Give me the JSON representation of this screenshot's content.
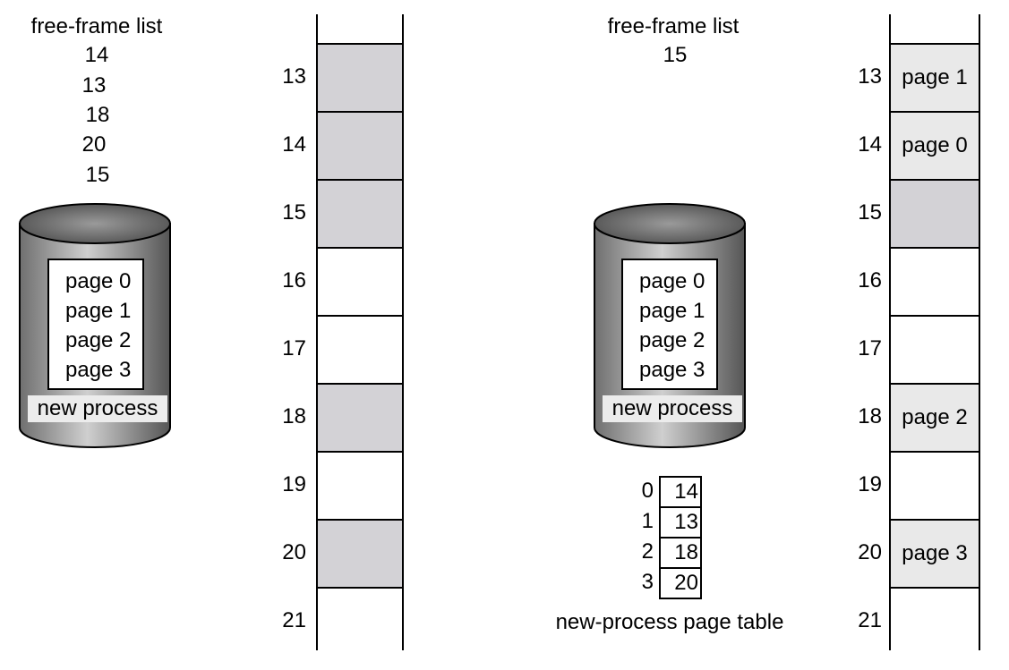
{
  "before": {
    "free_frame_list": {
      "title": "free-frame list",
      "frames": [
        "14",
        "13",
        "18",
        "20",
        "15"
      ]
    },
    "disk": {
      "pages": [
        "page 0",
        "page 1",
        "page 2",
        "page 3"
      ],
      "label": "new process"
    },
    "memory": {
      "frame_numbers": [
        "13",
        "14",
        "15",
        "16",
        "17",
        "18",
        "19",
        "20",
        "21"
      ],
      "cells": [
        "",
        "",
        "",
        "",
        "",
        "",
        "",
        "",
        ""
      ],
      "free_flags": [
        true,
        true,
        true,
        false,
        false,
        true,
        false,
        true,
        false
      ]
    }
  },
  "after": {
    "free_frame_list": {
      "title": "free-frame list",
      "frames": [
        "15"
      ]
    },
    "disk": {
      "pages": [
        "page 0",
        "page 1",
        "page 2",
        "page 3"
      ],
      "label": "new process"
    },
    "page_table": {
      "indices": [
        "0",
        "1",
        "2",
        "3"
      ],
      "frames": [
        "14",
        "13",
        "18",
        "20"
      ],
      "caption": "new-process page table"
    },
    "memory": {
      "frame_numbers": [
        "13",
        "14",
        "15",
        "16",
        "17",
        "18",
        "19",
        "20",
        "21"
      ],
      "cells": [
        "page 1",
        "page 0",
        "",
        "",
        "",
        "page 2",
        "",
        "page 3",
        ""
      ]
    }
  },
  "colors": {
    "free_frame": "#d3d2d6",
    "allocated_frame": "#e9e9e9",
    "empty_frame": "#ffffff",
    "disk_body": "#8e8e8e"
  }
}
